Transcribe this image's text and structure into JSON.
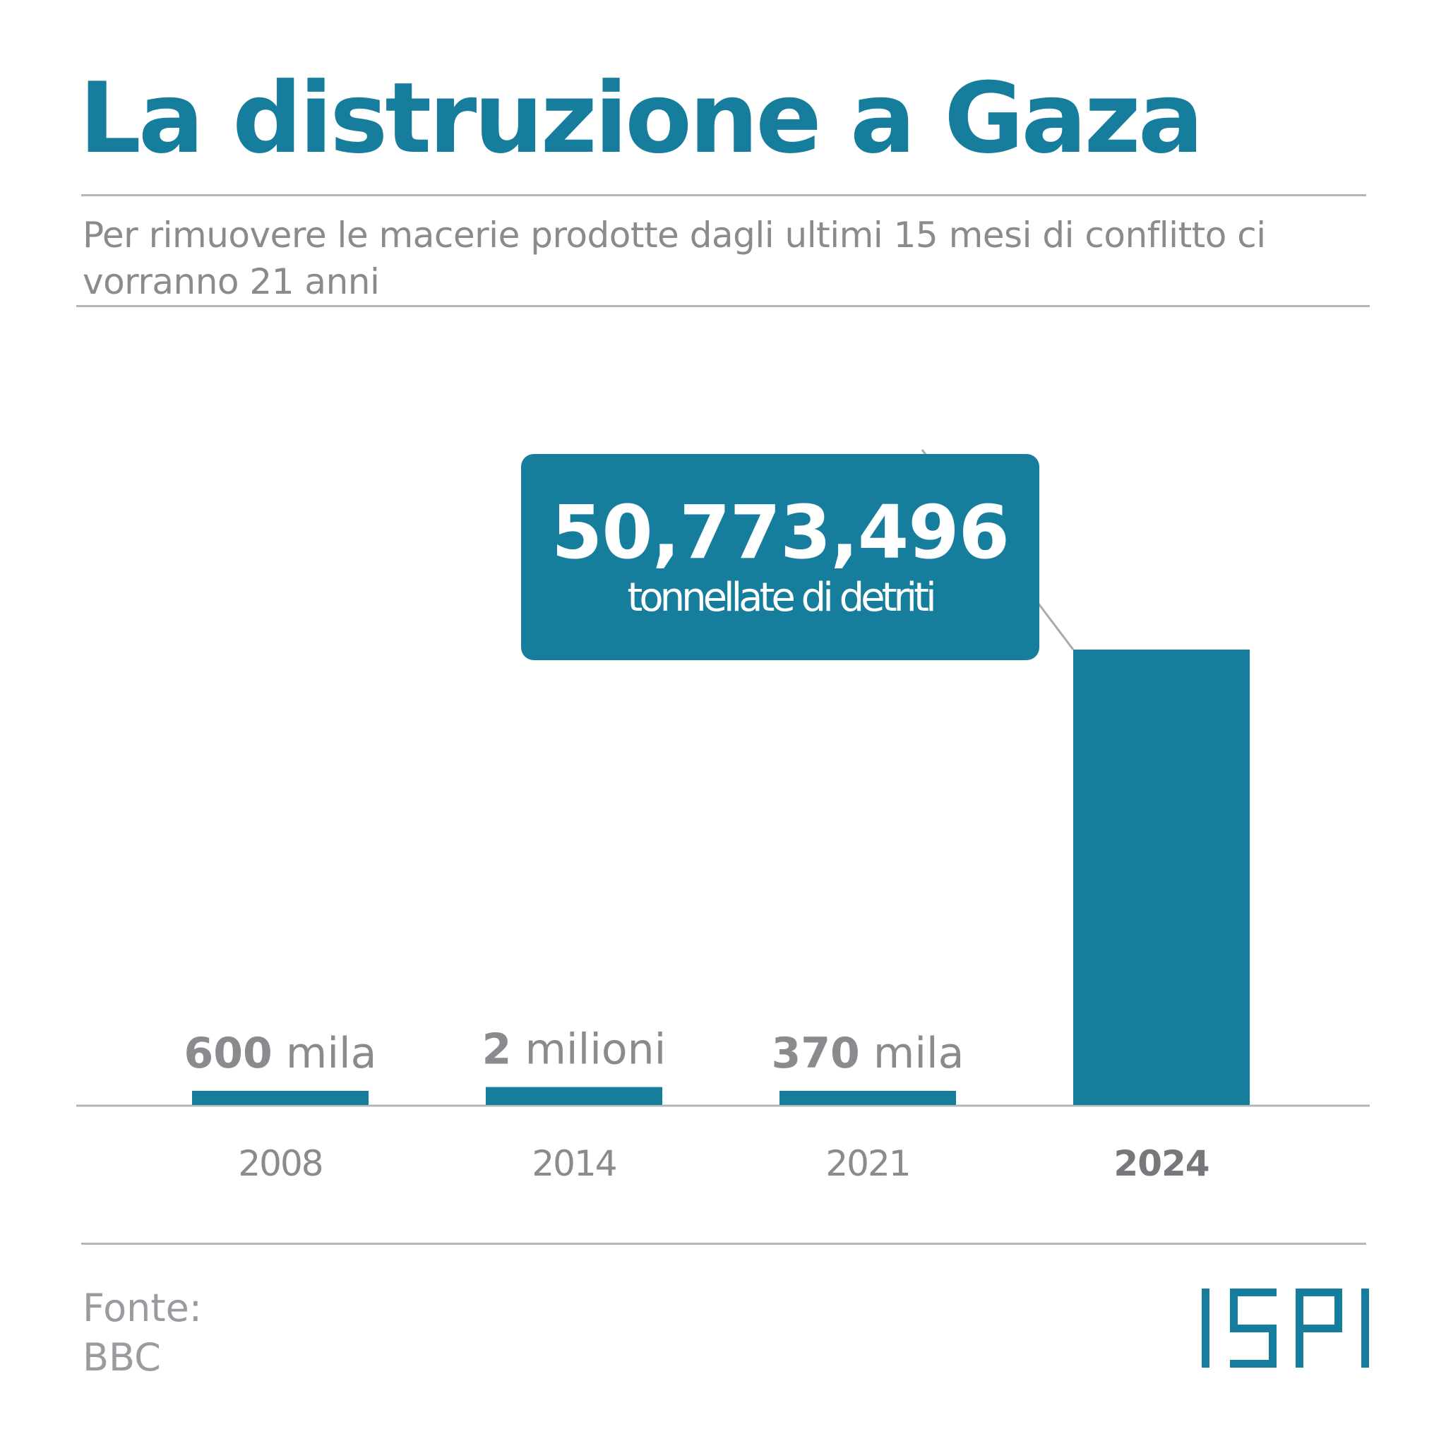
{
  "header": {
    "title": "La distruzione a Gaza",
    "subtitle": "Per rimuovere le macerie prodotte dagli ultimi 15 mesi di conflitto ci vorranno 21 anni"
  },
  "chart_data": {
    "type": "bar",
    "categories": [
      "2008",
      "2014",
      "2021",
      "2024"
    ],
    "values": [
      600000,
      2000000,
      370000,
      50773496
    ],
    "value_labels": [
      {
        "number": "600",
        "unit": "mila"
      },
      {
        "number": "2",
        "unit": "milioni"
      },
      {
        "number": "370",
        "unit": "mila"
      },
      null
    ],
    "highlight_category": "2024",
    "callout": {
      "value": "50,773,496",
      "unit": "tonnellate di detriti"
    },
    "title": "",
    "xlabel": "",
    "ylabel": "",
    "ylim": [
      0,
      50773496
    ],
    "grid": false,
    "colors": {
      "bar": "#167e9c",
      "label": "#8a8a8f",
      "baseline": "#b6b6b6"
    }
  },
  "footer": {
    "source_label": "Fonte:",
    "source_value": "BBC",
    "logo_text": "ISPI",
    "logo_color": "#167e9c"
  }
}
